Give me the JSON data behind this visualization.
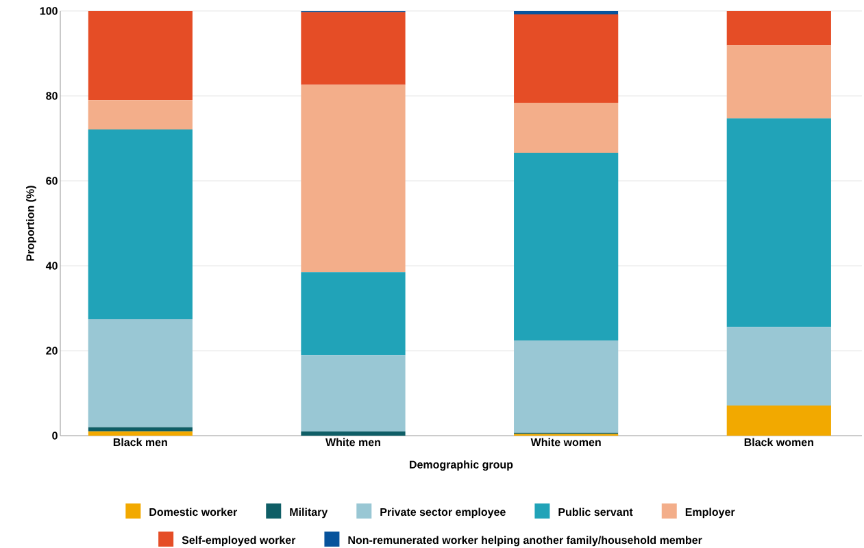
{
  "chart_data": {
    "type": "bar",
    "stacked": true,
    "xlabel": "Demographic group",
    "ylabel": "Proportion (%)",
    "categories": [
      "Black men",
      "White men",
      "White women",
      "Black women"
    ],
    "series": [
      {
        "name": "Domestic worker",
        "color": "#f2a900",
        "values": [
          1.0,
          0,
          0.4,
          7.1
        ]
      },
      {
        "name": "Military",
        "color": "#0f5e66",
        "values": [
          1.0,
          1.0,
          0.3,
          0
        ]
      },
      {
        "name": "Private sector employee",
        "color": "#99c7d4",
        "values": [
          25.4,
          18.0,
          21.7,
          18.5
        ]
      },
      {
        "name": "Public servant",
        "color": "#21a3b8",
        "values": [
          44.7,
          19.5,
          44.2,
          49.1
        ]
      },
      {
        "name": "Employer",
        "color": "#f3ae8a",
        "values": [
          6.9,
          44.1,
          11.8,
          17.2
        ]
      },
      {
        "name": "Self-employed worker",
        "color": "#e54d26",
        "values": [
          21.0,
          17.1,
          20.8,
          8.1
        ]
      },
      {
        "name": "Non-remunerated worker helping another family/household member",
        "color": "#07539c",
        "values": [
          0,
          0.3,
          0.8,
          0
        ]
      }
    ],
    "ylim": [
      0,
      100
    ],
    "yticks": [
      0,
      20,
      40,
      60,
      80,
      100
    ],
    "grid": "y",
    "legend": "bottom"
  }
}
